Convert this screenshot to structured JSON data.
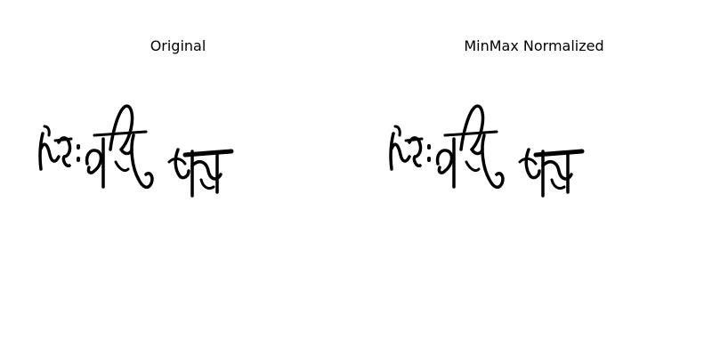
{
  "panels": [
    {
      "title": "Original",
      "image_description": "handwritten Bengali signature"
    },
    {
      "title": "MinMax Normalized",
      "image_description": "handwritten Bengali signature"
    }
  ],
  "colors": {
    "background": "#ffffff",
    "ink": "#000000"
  }
}
